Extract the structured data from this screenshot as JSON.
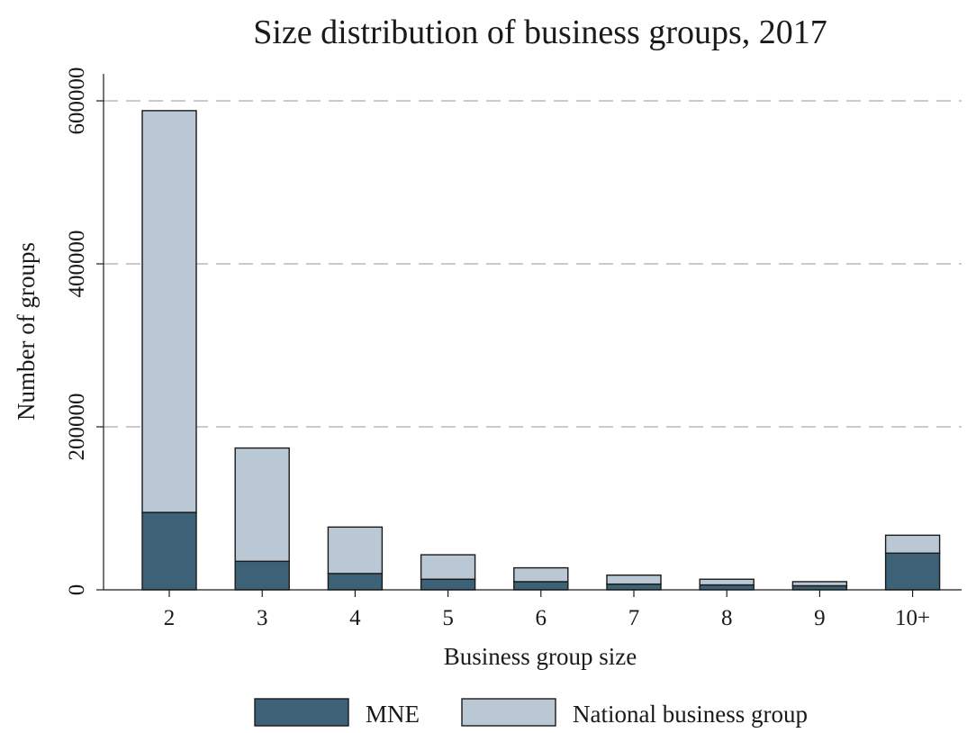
{
  "chart_data": {
    "type": "bar",
    "stacked": true,
    "title": "Size distribution of business groups, 2017",
    "xlabel": "Business group size",
    "ylabel": "Number of groups",
    "categories": [
      "2",
      "3",
      "4",
      "5",
      "6",
      "7",
      "8",
      "9",
      "10+"
    ],
    "series": [
      {
        "name": "MNE",
        "color": "#3d6278",
        "values": [
          95000,
          35000,
          20000,
          13000,
          10000,
          7000,
          6000,
          5000,
          45000
        ]
      },
      {
        "name": "National business group",
        "color": "#b9c8d4",
        "values": [
          493000,
          139000,
          57000,
          30000,
          17000,
          11000,
          7000,
          5000,
          22000
        ]
      }
    ],
    "ylim": [
      0,
      600000
    ],
    "yticks": [
      0,
      200000,
      400000,
      600000
    ],
    "ytick_labels": [
      "0",
      "200000",
      "400000",
      "600000"
    ],
    "grid": "horizontal dashed",
    "legend_position": "bottom"
  }
}
